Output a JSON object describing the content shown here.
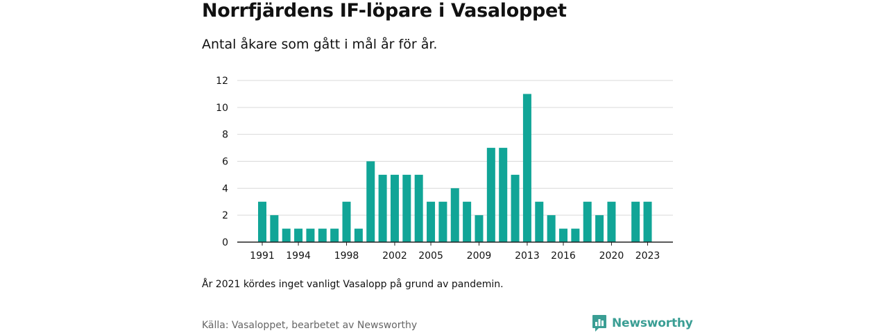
{
  "title": "Norrfjärdens IF-löpare i Vasaloppet",
  "subtitle": "Antal åkare som gått i mål år för år.",
  "note": "År 2021 kördes inget vanligt Vasalopp på grund av pandemin.",
  "source": "Källa: Vasaloppet, bearbetet av Newsworthy",
  "logo": {
    "text": "Newsworthy",
    "icon": "newsworthy-logo-icon",
    "color": "#3a9e94"
  },
  "chart_data": {
    "type": "bar",
    "categories": [
      "1991",
      "1992",
      "1993",
      "1994",
      "1995",
      "1996",
      "1997",
      "1998",
      "1999",
      "2000",
      "2001",
      "2002",
      "2003",
      "2004",
      "2005",
      "2006",
      "2007",
      "2008",
      "2009",
      "2010",
      "2011",
      "2012",
      "2013",
      "2014",
      "2015",
      "2016",
      "2017",
      "2018",
      "2019",
      "2020",
      "2021",
      "2022",
      "2023"
    ],
    "values": [
      3,
      2,
      1,
      1,
      1,
      1,
      1,
      3,
      1,
      6,
      5,
      5,
      5,
      5,
      3,
      3,
      4,
      3,
      2,
      7,
      7,
      5,
      11,
      3,
      2,
      1,
      1,
      3,
      2,
      3,
      null,
      3,
      3
    ],
    "x_tick_labels": [
      "1991",
      "1994",
      "1998",
      "2002",
      "2005",
      "2009",
      "2013",
      "2016",
      "2020",
      "2023"
    ],
    "y_ticks": [
      0,
      2,
      4,
      6,
      8,
      10,
      12
    ],
    "ylim": [
      0,
      12
    ],
    "xlabel": "",
    "ylabel": "",
    "bar_color": "#11a597",
    "grid": true
  }
}
